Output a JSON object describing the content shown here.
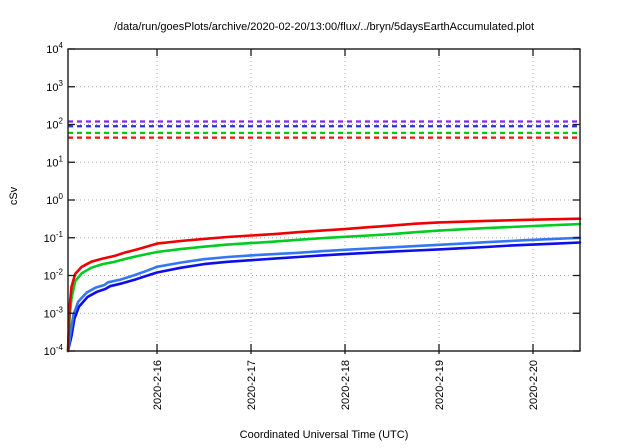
{
  "chart": {
    "title": "/data/run/goesPlots/archive/2020-02-20/13:00/flux/../bryn/5daysEarthAccumulated.plot",
    "ylabel": "cSv",
    "xlabel": "Coordinated Universal Time (UTC)"
  },
  "chart_data": {
    "type": "line",
    "title": "/data/run/goesPlots/archive/2020-02-20/13:00/flux/../bryn/5daysEarthAccumulated.plot",
    "xlabel": "Coordinated Universal Time (UTC)",
    "ylabel": "cSv",
    "y_scale": "log",
    "ylim": [
      0.0001,
      10000.0
    ],
    "y_tick_exponents": [
      4,
      3,
      2,
      1,
      0,
      -1,
      -2,
      -3,
      -4
    ],
    "grid": true,
    "legend_position": "none",
    "x_range_days": [
      0.053,
      5.5
    ],
    "x_ticks": [
      {
        "t": 1,
        "label": "2020-2-16"
      },
      {
        "t": 2,
        "label": "2020-2-17"
      },
      {
        "t": 3,
        "label": "2020-2-18"
      },
      {
        "t": 4,
        "label": "2020-2-19"
      },
      {
        "t": 5,
        "label": "2020-2-20"
      }
    ],
    "limit_lines": [
      {
        "name": "limit-purple",
        "value_cSv": 120,
        "color": "#8a22ee",
        "style": "dashed"
      },
      {
        "name": "limit-blue",
        "value_cSv": 90,
        "color": "#2b2bdd",
        "style": "dashed"
      },
      {
        "name": "limit-green",
        "value_cSv": 60,
        "color": "#00cc00",
        "style": "dashed"
      },
      {
        "name": "limit-red",
        "value_cSv": 45,
        "color": "#ee1111",
        "style": "dashed"
      }
    ],
    "series": [
      {
        "name": "accumulated-dose-blue-dark",
        "color": "#0d0dee",
        "width": 2.6,
        "points": [
          [
            0.053,
            0.0001
          ],
          [
            0.09,
            0.00025
          ],
          [
            0.12,
            0.0007
          ],
          [
            0.17,
            0.0015
          ],
          [
            0.26,
            0.0027
          ],
          [
            0.36,
            0.0037
          ],
          [
            0.45,
            0.0044
          ],
          [
            0.5,
            0.0052
          ],
          [
            0.63,
            0.0062
          ],
          [
            0.78,
            0.008
          ],
          [
            0.9,
            0.01
          ],
          [
            1.0,
            0.012
          ],
          [
            1.25,
            0.016
          ],
          [
            1.5,
            0.02
          ],
          [
            1.75,
            0.023
          ],
          [
            2.0,
            0.0255
          ],
          [
            2.25,
            0.028
          ],
          [
            2.5,
            0.031
          ],
          [
            2.75,
            0.034
          ],
          [
            3.0,
            0.037
          ],
          [
            3.25,
            0.04
          ],
          [
            3.5,
            0.043
          ],
          [
            3.75,
            0.046
          ],
          [
            4.0,
            0.049
          ],
          [
            4.25,
            0.053
          ],
          [
            4.5,
            0.057
          ],
          [
            4.75,
            0.062
          ],
          [
            5.0,
            0.066
          ],
          [
            5.25,
            0.07
          ],
          [
            5.5,
            0.075
          ]
        ]
      },
      {
        "name": "accumulated-dose-blue-light",
        "color": "#3377f2",
        "width": 2.6,
        "points": [
          [
            0.053,
            0.0001
          ],
          [
            0.08,
            0.0003
          ],
          [
            0.11,
            0.0009
          ],
          [
            0.16,
            0.002
          ],
          [
            0.25,
            0.0035
          ],
          [
            0.35,
            0.0048
          ],
          [
            0.44,
            0.0056
          ],
          [
            0.48,
            0.0066
          ],
          [
            0.61,
            0.0078
          ],
          [
            0.75,
            0.01
          ],
          [
            0.88,
            0.013
          ],
          [
            1.0,
            0.017
          ],
          [
            1.25,
            0.022
          ],
          [
            1.5,
            0.027
          ],
          [
            1.75,
            0.031
          ],
          [
            2.0,
            0.034
          ],
          [
            2.25,
            0.037
          ],
          [
            2.5,
            0.04
          ],
          [
            2.75,
            0.044
          ],
          [
            3.0,
            0.048
          ],
          [
            3.25,
            0.052
          ],
          [
            3.5,
            0.056
          ],
          [
            3.75,
            0.06
          ],
          [
            4.0,
            0.065
          ],
          [
            4.25,
            0.07
          ],
          [
            4.5,
            0.076
          ],
          [
            4.75,
            0.082
          ],
          [
            5.0,
            0.088
          ],
          [
            5.25,
            0.094
          ],
          [
            5.5,
            0.1
          ]
        ]
      },
      {
        "name": "accumulated-dose-green",
        "color": "#00cc22",
        "width": 2.6,
        "points": [
          [
            0.053,
            0.0001
          ],
          [
            0.07,
            0.0008
          ],
          [
            0.09,
            0.0025
          ],
          [
            0.13,
            0.007
          ],
          [
            0.2,
            0.0115
          ],
          [
            0.3,
            0.016
          ],
          [
            0.42,
            0.02
          ],
          [
            0.55,
            0.023
          ],
          [
            0.65,
            0.027
          ],
          [
            0.8,
            0.033
          ],
          [
            1.0,
            0.042
          ],
          [
            1.25,
            0.05
          ],
          [
            1.5,
            0.058
          ],
          [
            1.75,
            0.066
          ],
          [
            2.0,
            0.072
          ],
          [
            2.25,
            0.079
          ],
          [
            2.5,
            0.088
          ],
          [
            2.75,
            0.097
          ],
          [
            3.0,
            0.106
          ],
          [
            3.25,
            0.115
          ],
          [
            3.5,
            0.125
          ],
          [
            3.75,
            0.14
          ],
          [
            4.0,
            0.155
          ],
          [
            4.5,
            0.18
          ],
          [
            5.0,
            0.205
          ],
          [
            5.5,
            0.23
          ]
        ]
      },
      {
        "name": "accumulated-dose-red",
        "color": "#ee0000",
        "width": 2.6,
        "points": [
          [
            0.053,
            0.0001
          ],
          [
            0.07,
            0.0015
          ],
          [
            0.09,
            0.005
          ],
          [
            0.13,
            0.011
          ],
          [
            0.2,
            0.017
          ],
          [
            0.3,
            0.023
          ],
          [
            0.42,
            0.028
          ],
          [
            0.55,
            0.033
          ],
          [
            0.65,
            0.04
          ],
          [
            0.8,
            0.05
          ],
          [
            1.0,
            0.07
          ],
          [
            1.25,
            0.082
          ],
          [
            1.5,
            0.093
          ],
          [
            1.75,
            0.105
          ],
          [
            2.0,
            0.115
          ],
          [
            2.25,
            0.125
          ],
          [
            2.5,
            0.14
          ],
          [
            2.75,
            0.155
          ],
          [
            3.0,
            0.17
          ],
          [
            3.25,
            0.19
          ],
          [
            3.5,
            0.21
          ],
          [
            3.75,
            0.235
          ],
          [
            4.0,
            0.255
          ],
          [
            4.5,
            0.28
          ],
          [
            5.0,
            0.3
          ],
          [
            5.5,
            0.32
          ]
        ]
      }
    ],
    "colors": {
      "grid": "#aaaaaa",
      "axis": "#1a1a1a",
      "background": "#ffffff"
    }
  }
}
